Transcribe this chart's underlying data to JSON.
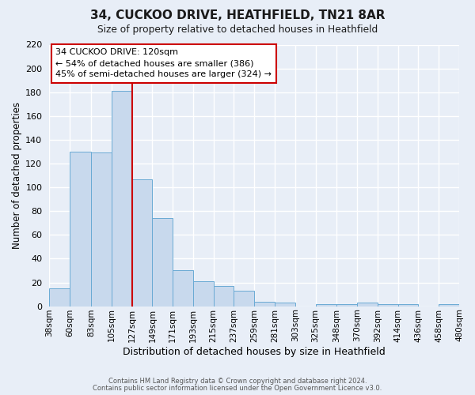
{
  "title": "34, CUCKOO DRIVE, HEATHFIELD, TN21 8AR",
  "subtitle": "Size of property relative to detached houses in Heathfield",
  "xlabel": "Distribution of detached houses by size in Heathfield",
  "ylabel": "Number of detached properties",
  "bar_color": "#c8d9ed",
  "bar_edge_color": "#6aaad4",
  "background_color": "#e8eef7",
  "grid_color": "#ffffff",
  "bin_labels": [
    "38sqm",
    "60sqm",
    "83sqm",
    "105sqm",
    "127sqm",
    "149sqm",
    "171sqm",
    "193sqm",
    "215sqm",
    "237sqm",
    "259sqm",
    "281sqm",
    "303sqm",
    "325sqm",
    "348sqm",
    "370sqm",
    "392sqm",
    "414sqm",
    "436sqm",
    "458sqm",
    "480sqm"
  ],
  "bin_edges": [
    38,
    60,
    83,
    105,
    127,
    149,
    171,
    193,
    215,
    237,
    259,
    281,
    303,
    325,
    348,
    370,
    392,
    414,
    436,
    458,
    480
  ],
  "bar_heights": [
    15,
    130,
    129,
    181,
    107,
    74,
    30,
    21,
    17,
    13,
    4,
    3,
    0,
    2,
    2,
    3,
    2,
    2,
    0,
    2
  ],
  "ylim": [
    0,
    220
  ],
  "yticks": [
    0,
    20,
    40,
    60,
    80,
    100,
    120,
    140,
    160,
    180,
    200,
    220
  ],
  "vline_x": 127,
  "vline_color": "#cc0000",
  "annotation_title": "34 CUCKOO DRIVE: 120sqm",
  "annotation_line1": "← 54% of detached houses are smaller (386)",
  "annotation_line2": "45% of semi-detached houses are larger (324) →",
  "annotation_box_edgecolor": "#cc0000",
  "footer_line1": "Contains HM Land Registry data © Crown copyright and database right 2024.",
  "footer_line2": "Contains public sector information licensed under the Open Government Licence v3.0."
}
